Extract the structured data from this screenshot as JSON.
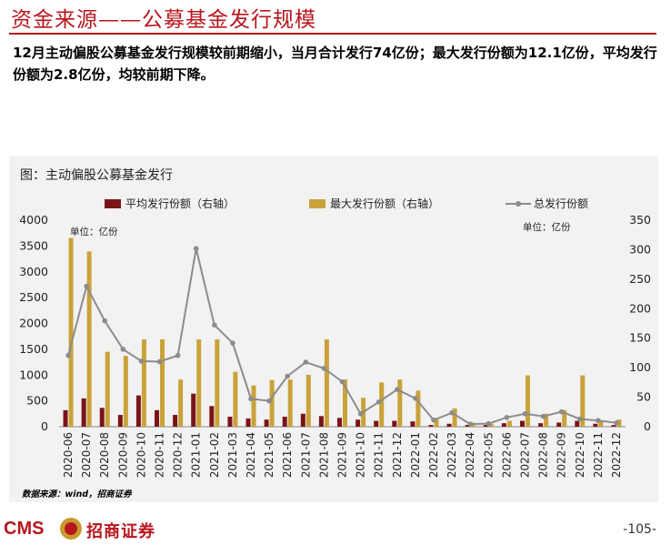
{
  "header": {
    "title": "资金来源——公募基金发行规模",
    "summary": "12月主动偏股公募基金发行规模较前期缩小，当月合计发行74亿份；最大发行份额为12.1亿份，平均发行份额为2.8亿份，均较前期下降。"
  },
  "footer": {
    "source": "数据来源：wind，招商证券",
    "logo_latin": "CMS",
    "logo_cn": "招商证券",
    "page": "-105-"
  },
  "colors": {
    "brand_red": "#b8161e",
    "avg_bar": "#7a1418",
    "max_bar": "#c9a23a",
    "total_line": "#8c8c8c"
  },
  "chart_data": {
    "type": "bar",
    "title": "图：主动偏股公募基金发行",
    "left_unit": "单位：亿份",
    "right_unit": "单位：亿份",
    "categories": [
      "2020-06",
      "2020-07",
      "2020-08",
      "2020-09",
      "2020-10",
      "2020-11",
      "2020-12",
      "2021-01",
      "2021-02",
      "2021-03",
      "2021-04",
      "2021-05",
      "2021-06",
      "2021-07",
      "2021-08",
      "2021-09",
      "2021-10",
      "2021-11",
      "2021-12",
      "2022-01",
      "2022-02",
      "2022-03",
      "2022-04",
      "2022-05",
      "2022-06",
      "2022-07",
      "2022-08",
      "2022-09",
      "2022-10",
      "2022-11",
      "2022-12"
    ],
    "y_left": {
      "min": 0,
      "max": 4000,
      "ticks": [
        0,
        500,
        1000,
        1500,
        2000,
        2500,
        3000,
        3500,
        4000
      ]
    },
    "y_right": {
      "min": 0,
      "max": 350,
      "ticks": [
        0,
        50,
        100,
        150,
        200,
        250,
        300,
        350
      ]
    },
    "series": [
      {
        "name": "平均发行份额（右轴）",
        "type": "bar",
        "axis": "right",
        "values": [
          28,
          48,
          32,
          20,
          53,
          28,
          20,
          56,
          35,
          17,
          14,
          12,
          17,
          22,
          18,
          15,
          12,
          10,
          10,
          9,
          3,
          5,
          3,
          3,
          6,
          10,
          6,
          7,
          10,
          5,
          2.8
        ]
      },
      {
        "name": "最大发行份额（右轴）",
        "type": "bar",
        "axis": "right",
        "values": [
          320,
          297,
          127,
          120,
          148,
          148,
          80,
          148,
          148,
          93,
          70,
          79,
          80,
          88,
          148,
          80,
          49,
          75,
          80,
          61,
          15,
          31,
          7,
          5,
          10,
          87,
          22,
          28,
          87,
          10,
          12.1
        ]
      },
      {
        "name": "总发行份额",
        "type": "line",
        "axis": "left",
        "values": [
          1380,
          2720,
          2050,
          1500,
          1270,
          1260,
          1380,
          3450,
          1970,
          1620,
          540,
          500,
          980,
          1250,
          1130,
          870,
          250,
          480,
          720,
          550,
          130,
          270,
          50,
          60,
          180,
          250,
          200,
          290,
          150,
          120,
          74
        ]
      }
    ],
    "grid": false,
    "legend_position": "top"
  }
}
